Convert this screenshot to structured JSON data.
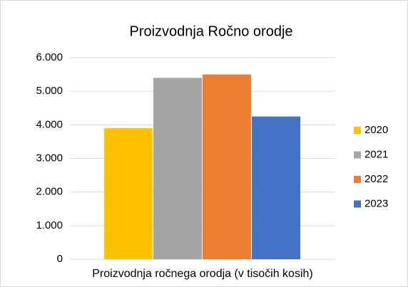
{
  "chart_data": {
    "type": "bar",
    "title": "Proizvodnja Ročno orodje",
    "categories": [
      "Proizvodnja ročnega orodja (v tisočih kosih)"
    ],
    "series": [
      {
        "name": "2020",
        "color": "#ffc000",
        "values": [
          3900
        ]
      },
      {
        "name": "2021",
        "color": "#a5a5a5",
        "values": [
          5400
        ]
      },
      {
        "name": "2022",
        "color": "#ed7d31",
        "values": [
          5500
        ]
      },
      {
        "name": "2023",
        "color": "#4472c4",
        "values": [
          4250
        ]
      }
    ],
    "ylim": [
      0,
      6000
    ],
    "yticks": [
      0,
      {
        "value": 1000,
        "label": "1.000"
      },
      {
        "value": 2000,
        "label": "2.000"
      },
      {
        "value": 3000,
        "label": "3.000"
      },
      {
        "value": 4000,
        "label": "4.000"
      },
      {
        "value": 5000,
        "label": "5.000"
      },
      {
        "value": 6000,
        "label": "6.000"
      }
    ],
    "grid": true,
    "legend": "right"
  }
}
